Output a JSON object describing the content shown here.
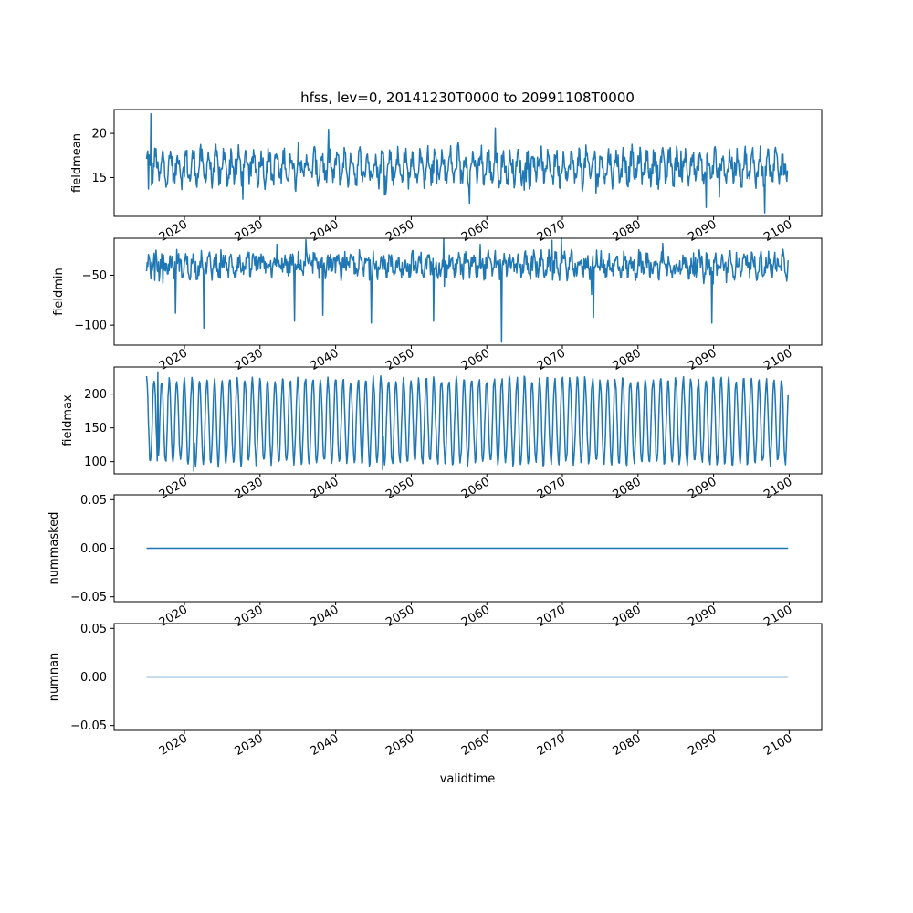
{
  "figure": {
    "title": "hfss, lev=0, 20141230T0000 to 20991108T0000",
    "xlabel": "validtime",
    "line_color": "#1f77b4",
    "x_ticks": [
      "2020",
      "2030",
      "2040",
      "2050",
      "2060",
      "2070",
      "2080",
      "2090",
      "2100"
    ],
    "x_tick_values": [
      2020,
      2030,
      2040,
      2050,
      2060,
      2070,
      2080,
      2090,
      2100
    ]
  },
  "chart_data": [
    {
      "type": "line",
      "name": "fieldmean",
      "ylabel": "fieldmean",
      "xlim": [
        2010.7,
        2104.3
      ],
      "ylim": [
        10.6,
        22.7
      ],
      "y_ticks": [
        15,
        20
      ],
      "y_tick_labels": [
        "15",
        "20"
      ],
      "x_range": [
        2014.99,
        2099.85
      ],
      "pattern": "noisy",
      "base": 16.2,
      "amp": 1.4,
      "noise": 1.2,
      "extremes": [
        [
          2015.6,
          22.2
        ],
        [
          2015.2,
          13.7
        ],
        [
          2061.1,
          20.6
        ],
        [
          2096.8,
          11.0
        ],
        [
          2089.0,
          11.6
        ],
        [
          2057.7,
          12.1
        ]
      ]
    },
    {
      "type": "line",
      "name": "fieldmin",
      "ylabel": "fieldmin",
      "xlim": [
        2010.7,
        2104.3
      ],
      "ylim": [
        -120,
        -13
      ],
      "y_ticks": [
        -100,
        -50
      ],
      "y_tick_labels": [
        "−100",
        "−50"
      ],
      "x_range": [
        2014.99,
        2099.85
      ],
      "pattern": "noisy",
      "base": -40,
      "amp": 6,
      "noise": 10,
      "extremes": [
        [
          2062.0,
          -117
        ],
        [
          2022.6,
          -103
        ],
        [
          2018.8,
          -88
        ],
        [
          2034.6,
          -96
        ],
        [
          2044.7,
          -98
        ],
        [
          2074.1,
          -92
        ],
        [
          2089.8,
          -98
        ],
        [
          2038.3,
          -90
        ],
        [
          2053.0,
          -96
        ],
        [
          2068.6,
          -15
        ]
      ]
    },
    {
      "type": "line",
      "name": "fieldmax",
      "ylabel": "fieldmax",
      "xlim": [
        2010.7,
        2104.3
      ],
      "ylim": [
        82,
        240
      ],
      "y_ticks": [
        100,
        150,
        200
      ],
      "y_tick_labels": [
        "100",
        "150",
        "200"
      ],
      "x_range": [
        2014.99,
        2099.85
      ],
      "pattern": "seasonal",
      "base": 160,
      "amp": 62,
      "noise": 6,
      "extremes": [
        [
          2016.5,
          233
        ],
        [
          2021.2,
          86
        ],
        [
          2046.2,
          88
        ]
      ]
    },
    {
      "type": "line",
      "name": "nummasked",
      "ylabel": "nummasked",
      "xlim": [
        2010.7,
        2104.3
      ],
      "ylim": [
        -0.055,
        0.055
      ],
      "y_ticks": [
        -0.05,
        0,
        0.05
      ],
      "y_tick_labels": [
        "−0.05",
        "0.00",
        "0.05"
      ],
      "x_range": [
        2014.99,
        2099.85
      ],
      "pattern": "constant",
      "value": 0
    },
    {
      "type": "line",
      "name": "numnan",
      "ylabel": "numnan",
      "xlim": [
        2010.7,
        2104.3
      ],
      "ylim": [
        -0.055,
        0.055
      ],
      "y_ticks": [
        -0.05,
        0,
        0.05
      ],
      "y_tick_labels": [
        "−0.05",
        "0.00",
        "0.05"
      ],
      "x_range": [
        2014.99,
        2099.85
      ],
      "pattern": "constant",
      "value": 0
    }
  ]
}
